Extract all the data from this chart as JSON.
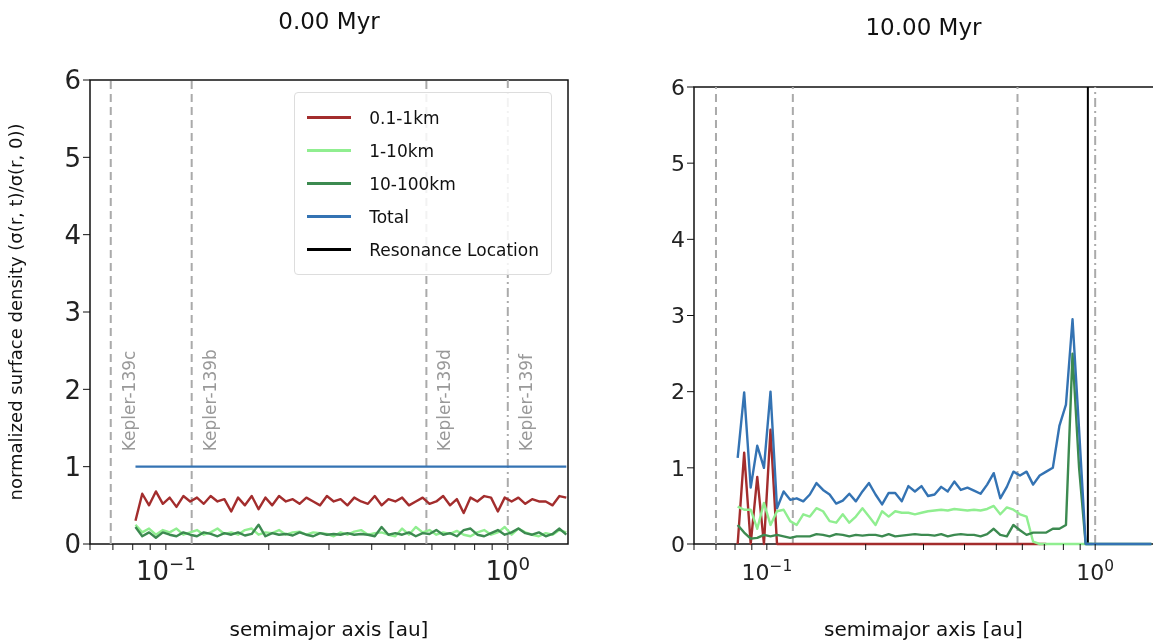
{
  "chart_data": [
    {
      "type": "line",
      "title": "0.00 Myr",
      "xlabel": "semimajor axis [au]",
      "ylabel": "normalized surface density (σ(r, t)/σ(r, 0))",
      "x": [
        0.0815,
        0.0853,
        0.0893,
        0.0935,
        0.098,
        0.1026,
        0.1074,
        0.1125,
        0.1178,
        0.1233,
        0.1291,
        0.1352,
        0.1416,
        0.1483,
        0.1553,
        0.1626,
        0.1703,
        0.1783,
        0.1867,
        0.1955,
        0.2047,
        0.2143,
        0.2244,
        0.235,
        0.246,
        0.2576,
        0.2698,
        0.2825,
        0.2958,
        0.3097,
        0.3243,
        0.3396,
        0.3556,
        0.3724,
        0.3899,
        0.4083,
        0.4275,
        0.4477,
        0.4688,
        0.4909,
        0.514,
        0.5382,
        0.5636,
        0.5902,
        0.618,
        0.6471,
        0.6776,
        0.7096,
        0.743,
        0.778,
        0.8147,
        0.8531,
        0.8933,
        0.9354,
        0.9795,
        1.026,
        1.074,
        1.125,
        1.178,
        1.233,
        1.291,
        1.352,
        1.416,
        1.483
      ],
      "series": [
        {
          "name": "0.1-1km",
          "color": "#a32d2d",
          "values": [
            0.3,
            0.65,
            0.5,
            0.68,
            0.52,
            0.6,
            0.48,
            0.62,
            0.55,
            0.6,
            0.52,
            0.62,
            0.55,
            0.58,
            0.42,
            0.6,
            0.5,
            0.62,
            0.45,
            0.6,
            0.5,
            0.62,
            0.55,
            0.58,
            0.52,
            0.6,
            0.55,
            0.5,
            0.62,
            0.55,
            0.58,
            0.5,
            0.6,
            0.55,
            0.52,
            0.62,
            0.5,
            0.58,
            0.55,
            0.6,
            0.5,
            0.55,
            0.6,
            0.52,
            0.55,
            0.62,
            0.5,
            0.58,
            0.4,
            0.6,
            0.55,
            0.62,
            0.6,
            0.42,
            0.6,
            0.55,
            0.6,
            0.52,
            0.58,
            0.55,
            0.55,
            0.5,
            0.62,
            0.6
          ]
        },
        {
          "name": "1-10km",
          "color": "#90ee90",
          "values": [
            0.25,
            0.15,
            0.2,
            0.12,
            0.18,
            0.15,
            0.2,
            0.12,
            0.15,
            0.18,
            0.12,
            0.15,
            0.2,
            0.13,
            0.15,
            0.12,
            0.18,
            0.2,
            0.12,
            0.15,
            0.14,
            0.18,
            0.12,
            0.15,
            0.16,
            0.12,
            0.15,
            0.14,
            0.13,
            0.1,
            0.15,
            0.12,
            0.16,
            0.18,
            0.12,
            0.14,
            0.15,
            0.12,
            0.1,
            0.2,
            0.12,
            0.22,
            0.15,
            0.18,
            0.12,
            0.15,
            0.13,
            0.17,
            0.12,
            0.1,
            0.15,
            0.18,
            0.12,
            0.15,
            0.22,
            0.12,
            0.2,
            0.15,
            0.12,
            0.1,
            0.14,
            0.12,
            0.18,
            0.15
          ]
        },
        {
          "name": "10-100km",
          "color": "#3c8a50",
          "values": [
            0.22,
            0.1,
            0.15,
            0.08,
            0.15,
            0.12,
            0.1,
            0.15,
            0.12,
            0.1,
            0.15,
            0.13,
            0.1,
            0.14,
            0.12,
            0.15,
            0.11,
            0.13,
            0.25,
            0.1,
            0.14,
            0.12,
            0.13,
            0.11,
            0.15,
            0.12,
            0.1,
            0.14,
            0.12,
            0.13,
            0.12,
            0.14,
            0.12,
            0.13,
            0.12,
            0.1,
            0.22,
            0.12,
            0.14,
            0.12,
            0.15,
            0.1,
            0.14,
            0.13,
            0.18,
            0.12,
            0.14,
            0.1,
            0.18,
            0.2,
            0.12,
            0.1,
            0.14,
            0.18,
            0.12,
            0.15,
            0.2,
            0.14,
            0.12,
            0.15,
            0.1,
            0.13,
            0.2,
            0.12
          ]
        },
        {
          "name": "Total",
          "color": "#3473b3",
          "values": [
            1,
            1,
            1,
            1,
            1,
            1,
            1,
            1,
            1,
            1,
            1,
            1,
            1,
            1,
            1,
            1,
            1,
            1,
            1,
            1,
            1,
            1,
            1,
            1,
            1,
            1,
            1,
            1,
            1,
            1,
            1,
            1,
            1,
            1,
            1,
            1,
            1,
            1,
            1,
            1,
            1,
            1,
            1,
            1,
            1,
            1,
            1,
            1,
            1,
            1,
            1,
            1,
            1,
            1,
            1,
            1,
            1,
            1,
            1,
            1,
            1,
            1,
            1,
            1
          ]
        },
        {
          "name": "Resonance Location",
          "color": "#000000",
          "values": [
            null,
            null,
            null,
            null,
            null,
            null,
            null,
            null,
            null,
            null,
            null,
            null,
            null,
            null,
            null,
            null,
            null,
            null,
            null,
            null,
            null,
            null,
            null,
            null,
            null,
            null,
            null,
            null,
            null,
            null,
            null,
            null,
            null,
            null,
            null,
            null,
            null,
            null,
            null,
            null,
            null,
            null,
            null,
            null,
            null,
            null,
            null,
            null,
            null,
            null,
            null,
            null,
            null,
            null,
            null,
            null,
            null,
            null,
            null,
            null,
            null,
            null,
            null,
            null
          ]
        }
      ],
      "xlim": [
        0.06,
        1.5
      ],
      "ylim": [
        0,
        6
      ],
      "yticks": [
        0,
        1,
        2,
        3,
        4,
        5,
        6
      ],
      "xticks": [
        {
          "value": 0.06,
          "label": null
        },
        {
          "value": 0.07,
          "label": null
        },
        {
          "value": 0.08,
          "label": null
        },
        {
          "value": 0.09,
          "label": null
        },
        {
          "value": 0.1,
          "label": "10$^{−1}$"
        },
        {
          "value": 0.2,
          "label": null
        },
        {
          "value": 0.3,
          "label": null
        },
        {
          "value": 0.4,
          "label": null
        },
        {
          "value": 0.5,
          "label": null
        },
        {
          "value": 0.6,
          "label": null
        },
        {
          "value": 0.7,
          "label": null
        },
        {
          "value": 0.8,
          "label": null
        },
        {
          "value": 0.9,
          "label": null
        },
        {
          "value": 1,
          "label": "10$^{0}$"
        }
      ],
      "ref_lines": [
        {
          "axis": "x",
          "value": 0.069,
          "label": "Kepler-139c",
          "color": "#aaaaaa",
          "line_style": "dashed"
        },
        {
          "axis": "x",
          "value": 0.119,
          "label": "Kepler-139b",
          "color": "#aaaaaa",
          "line_style": "dashed"
        },
        {
          "axis": "x",
          "value": 0.578,
          "label": "Kepler-139d",
          "color": "#aaaaaa",
          "line_style": "dashed"
        },
        {
          "axis": "x",
          "value": 1.0,
          "label": "Kepler-139f",
          "color": "#aaaaaa",
          "line_style": "dashdot"
        }
      ],
      "legend": "top right",
      "grid": false,
      "marker": "none",
      "line_style": "solid",
      "log": "x"
    },
    {
      "type": "line",
      "title": "10.00 Myr",
      "xlabel": "semimajor axis [au]",
      "x": [
        0.0815,
        0.0853,
        0.0893,
        0.0935,
        0.098,
        0.1026,
        0.1074,
        0.1125,
        0.1178,
        0.1233,
        0.1291,
        0.1352,
        0.1416,
        0.1483,
        0.1553,
        0.1626,
        0.1703,
        0.1783,
        0.1867,
        0.1955,
        0.2047,
        0.2143,
        0.2244,
        0.235,
        0.246,
        0.2576,
        0.2698,
        0.2825,
        0.2958,
        0.3097,
        0.3243,
        0.3396,
        0.3556,
        0.3724,
        0.3899,
        0.4083,
        0.4275,
        0.4477,
        0.4688,
        0.4909,
        0.514,
        0.5382,
        0.5636,
        0.5902,
        0.618,
        0.6471,
        0.6776,
        0.7096,
        0.743,
        0.778,
        0.8147,
        0.8531,
        0.8933,
        0.9354,
        0.9795,
        1.026,
        1.074,
        1.125,
        1.178,
        1.233,
        1.291,
        1.352,
        1.416,
        1.483
      ],
      "series": [
        {
          "color": "#a32d2d",
          "values": [
            0,
            1.2,
            0,
            0.88,
            0,
            1.5,
            0,
            0,
            0,
            0,
            0,
            0,
            0,
            0,
            0,
            0,
            0,
            0,
            0,
            0,
            0,
            0,
            0,
            0,
            0,
            0,
            0,
            0,
            0,
            0,
            0,
            0,
            0,
            0,
            0,
            0,
            0,
            0,
            0,
            0,
            0,
            0,
            0,
            0,
            0,
            0,
            0,
            0,
            null,
            null,
            null,
            null,
            null,
            null,
            null,
            null,
            null,
            null,
            null,
            null,
            null,
            null,
            null,
            null
          ]
        },
        {
          "color": "#90ee90",
          "values": [
            0.49,
            0.45,
            0.45,
            0.2,
            0.54,
            0.25,
            0.43,
            0.45,
            0.3,
            0.25,
            0.39,
            0.36,
            0.47,
            0.43,
            0.3,
            0.28,
            0.39,
            0.28,
            0.36,
            0.47,
            0.36,
            0.25,
            0.43,
            0.36,
            0.43,
            0.41,
            0.41,
            0.39,
            0.41,
            0.43,
            0.44,
            0.45,
            0.44,
            0.46,
            0.45,
            0.44,
            0.45,
            0.44,
            0.46,
            0.5,
            0.39,
            0.48,
            0.45,
            0.39,
            0.36,
            0.03,
            0,
            0,
            0,
            0,
            0,
            0,
            0,
            0,
            0,
            null,
            null,
            null,
            null,
            null,
            null,
            null,
            null,
            null
          ]
        },
        {
          "color": "#3c8a50",
          "values": [
            0.25,
            0.15,
            0.07,
            0.08,
            0.12,
            0.1,
            0.12,
            0.1,
            0.08,
            0.1,
            0.1,
            0.1,
            0.13,
            0.12,
            0.1,
            0.13,
            0.12,
            0.1,
            0.12,
            0.11,
            0.12,
            0.12,
            0.1,
            0.13,
            0.1,
            0.11,
            0.12,
            0.13,
            0.12,
            0.12,
            0.11,
            0.13,
            0.1,
            0.12,
            0.13,
            0.12,
            0.12,
            0.1,
            0.13,
            0.2,
            0.12,
            0.1,
            0.25,
            0.18,
            0.12,
            0.15,
            0.15,
            0.15,
            0.2,
            0.2,
            0.25,
            2.5,
            1.0,
            0,
            0,
            0,
            0,
            0,
            0,
            0,
            0,
            0,
            0,
            0
          ]
        },
        {
          "color": "#3473b3",
          "values": [
            1.13,
            1.99,
            0.74,
            1.29,
            1.0,
            2.0,
            0.47,
            0.69,
            0.58,
            0.6,
            0.56,
            0.65,
            0.8,
            0.71,
            0.65,
            0.53,
            0.57,
            0.66,
            0.56,
            0.69,
            0.8,
            0.65,
            0.52,
            0.67,
            0.67,
            0.56,
            0.76,
            0.69,
            0.76,
            0.63,
            0.65,
            0.75,
            0.69,
            0.82,
            0.71,
            0.74,
            0.7,
            0.66,
            0.78,
            0.93,
            0.6,
            0.75,
            0.95,
            0.9,
            0.95,
            0.78,
            0.9,
            0.95,
            1.0,
            1.55,
            1.83,
            2.95,
            1.5,
            0,
            0,
            0,
            0,
            0,
            0,
            0,
            0,
            0,
            0,
            0
          ]
        }
      ],
      "xlim": [
        0.06,
        1.5
      ],
      "ylim": [
        0,
        6
      ],
      "yticks": [
        0,
        1,
        2,
        3,
        4,
        5,
        6
      ],
      "xticks": [
        {
          "value": 0.06,
          "label": null
        },
        {
          "value": 0.07,
          "label": null
        },
        {
          "value": 0.08,
          "label": null
        },
        {
          "value": 0.09,
          "label": null
        },
        {
          "value": 0.1,
          "label": "10$^{−1}$"
        },
        {
          "value": 0.2,
          "label": null
        },
        {
          "value": 0.3,
          "label": null
        },
        {
          "value": 0.4,
          "label": null
        },
        {
          "value": 0.5,
          "label": null
        },
        {
          "value": 0.6,
          "label": null
        },
        {
          "value": 0.7,
          "label": null
        },
        {
          "value": 0.8,
          "label": null
        },
        {
          "value": 0.9,
          "label": null
        },
        {
          "value": 1,
          "label": "10$^{0}$"
        }
      ],
      "ref_lines": [
        {
          "axis": "x",
          "value": 0.07,
          "color": "#aaaaaa",
          "line_style": "dashed"
        },
        {
          "axis": "x",
          "value": 0.12,
          "color": "#aaaaaa",
          "line_style": "dashed"
        },
        {
          "axis": "x",
          "value": 0.58,
          "color": "#aaaaaa",
          "line_style": "dashed"
        },
        {
          "axis": "x",
          "value": 1.0,
          "color": "#aaaaaa",
          "line_style": "dashdot"
        },
        {
          "axis": "x",
          "value": 0.95,
          "color": "#000000",
          "line_style": "solid"
        }
      ],
      "grid": false,
      "marker": "none",
      "line_style": "solid",
      "log": "x"
    }
  ]
}
